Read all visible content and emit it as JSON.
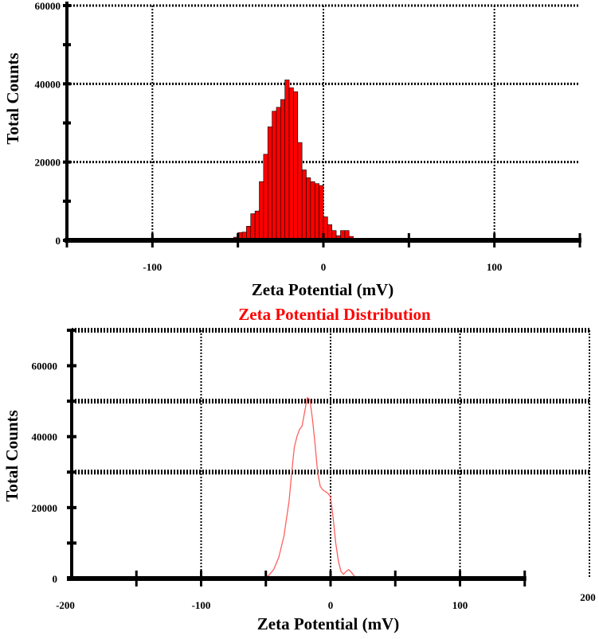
{
  "chart_data": [
    {
      "type": "bar",
      "title": "",
      "xlabel": "Zeta Potential (mV)",
      "ylabel": "Total Counts",
      "xlim": [
        -150,
        150
      ],
      "ylim": [
        0,
        60000
      ],
      "grid": true,
      "xticks": [
        -100,
        0,
        100
      ],
      "xtick_labels": [
        "-100",
        "0",
        "100"
      ],
      "yticks": [
        0,
        20000,
        40000,
        60000
      ],
      "ytick_labels": [
        "0",
        "20000",
        "40000",
        "60000"
      ],
      "bar_color": "#ff0000",
      "bin_width": 2.5,
      "x": [
        -51.25,
        -48.75,
        -46.25,
        -43.75,
        -41.25,
        -38.75,
        -36.25,
        -33.75,
        -31.25,
        -28.75,
        -26.25,
        -23.75,
        -21.25,
        -18.75,
        -16.25,
        -13.75,
        -11.25,
        -8.75,
        -6.25,
        -3.75,
        -1.25,
        1.25,
        3.75,
        6.25,
        8.75,
        11.25,
        13.75,
        16.25
      ],
      "values": [
        800,
        2000,
        2100,
        3600,
        6800,
        7500,
        15000,
        22000,
        29000,
        33000,
        34000,
        36000,
        41000,
        39000,
        38000,
        25000,
        18000,
        16000,
        15000,
        14500,
        14000,
        6000,
        4000,
        2500,
        1200,
        2500,
        2500,
        1000
      ]
    },
    {
      "type": "line",
      "title": "Zeta Potential Distribution",
      "xlabel": "Zeta Potential (mV)",
      "ylabel": "Total Counts",
      "xlim": [
        -200,
        200
      ],
      "ylim": [
        0,
        70000
      ],
      "grid": true,
      "xtick_labels": [
        "-200",
        "-100",
        "0",
        "100",
        "200"
      ],
      "ytick_labels": [
        "0",
        "20000",
        "40000",
        "60000"
      ],
      "line_color": "#ff6060",
      "series": [
        {
          "x": [
            -150,
            -60,
            -52,
            -48,
            -44,
            -40,
            -36,
            -32,
            -30,
            -28,
            -26,
            -24,
            -22,
            -20,
            -18,
            -16,
            -14,
            -12,
            -10,
            -8,
            -6,
            -4,
            -2,
            0,
            2,
            4,
            6,
            8,
            10,
            12,
            14,
            16,
            18,
            20,
            24,
            30,
            150
          ],
          "values": [
            0,
            0,
            200,
            800,
            2500,
            6000,
            12000,
            22000,
            30000,
            37000,
            40000,
            42000,
            43000,
            47000,
            51000,
            50500,
            45000,
            38000,
            30000,
            26000,
            25000,
            24500,
            24000,
            23000,
            17000,
            10000,
            5000,
            2000,
            1200,
            2000,
            2500,
            1800,
            800,
            200,
            0,
            0,
            0
          ]
        }
      ]
    }
  ]
}
